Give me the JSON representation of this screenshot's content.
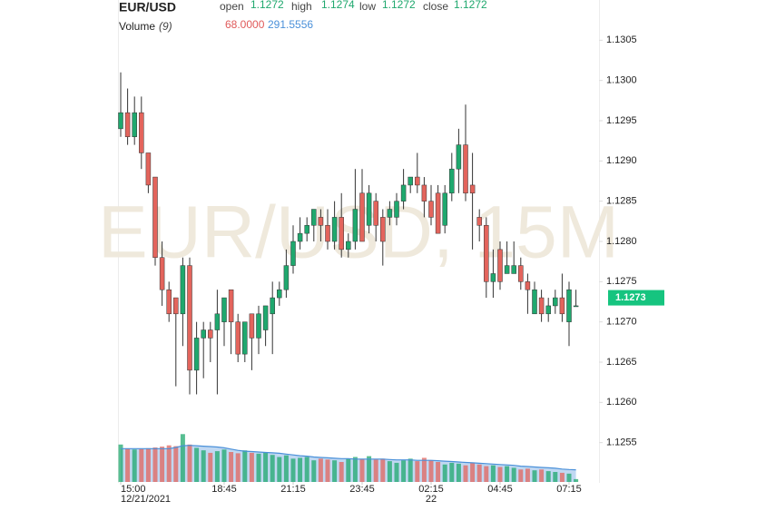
{
  "chart_data": {
    "type": "candlestick",
    "legend": {
      "symbol": "EUR/USD",
      "items": [
        {
          "label": "open",
          "value": "1.1272"
        },
        {
          "label": "high",
          "value": "1.1274"
        },
        {
          "label": "low",
          "value": "1.1272"
        },
        {
          "label": "close",
          "value": "1.1272"
        }
      ],
      "volume_label": "Volume",
      "volume_period": "(9)",
      "volume_value": "68.0000",
      "volume_ma_value": "291.5556"
    },
    "watermark": "EUR/USD, 15M",
    "categories": [
      "15:00",
      null,
      null,
      null,
      null,
      null,
      null,
      null,
      null,
      null,
      null,
      null,
      null,
      null,
      null,
      "18:45",
      null,
      null,
      null,
      null,
      null,
      null,
      null,
      null,
      null,
      "21:15",
      null,
      null,
      null,
      null,
      null,
      null,
      null,
      null,
      null,
      "23:45",
      null,
      null,
      null,
      null,
      null,
      null,
      null,
      null,
      null,
      "02:15",
      null,
      null,
      null,
      null,
      null,
      null,
      null,
      null,
      null,
      "04:45",
      null,
      null,
      null,
      null,
      null,
      null,
      null,
      null,
      null,
      "07:15",
      null
    ],
    "category_dates": [
      "12/21/2021",
      null,
      null,
      null,
      null,
      null,
      null,
      null,
      null,
      null,
      null,
      null,
      null,
      null,
      null,
      null,
      null,
      null,
      null,
      null,
      null,
      null,
      null,
      null,
      null,
      null,
      null,
      null,
      null,
      null,
      null,
      null,
      null,
      null,
      null,
      null,
      null,
      null,
      null,
      null,
      null,
      null,
      null,
      null,
      null,
      "22",
      null,
      null,
      null,
      null,
      null,
      null,
      null,
      null,
      null,
      null,
      null,
      null,
      null,
      null,
      null,
      null,
      null,
      null,
      null,
      null,
      null
    ],
    "open": [
      1.1294,
      1.1296,
      1.1293,
      1.1296,
      1.1291,
      1.1288,
      1.1278,
      1.1274,
      1.1273,
      1.1271,
      1.1277,
      1.1264,
      1.1268,
      1.1269,
      1.1269,
      1.127,
      1.1274,
      1.127,
      1.1266,
      1.1271,
      1.1268,
      1.1269,
      1.1271,
      1.1273,
      1.1274,
      1.1277,
      1.128,
      1.1281,
      1.1282,
      1.1283,
      1.1282,
      1.128,
      1.1283,
      1.1279,
      1.128,
      1.1286,
      1.1282,
      1.1285,
      1.1283,
      1.1283,
      1.1283,
      1.1285,
      1.1287,
      1.1288,
      1.1287,
      1.1285,
      1.1286,
      1.1282,
      1.1286,
      1.1289,
      1.1292,
      1.1287,
      1.1283,
      1.1282,
      1.1275,
      1.1279,
      1.1276,
      1.1276,
      1.1277,
      1.1275,
      1.1271,
      1.1273,
      1.1271,
      1.1272,
      1.1273,
      1.127,
      1.1272
    ],
    "high": [
      1.1301,
      1.1299,
      1.1298,
      1.1298,
      1.1291,
      1.1288,
      1.128,
      1.1275,
      1.1273,
      1.1278,
      1.1278,
      1.127,
      1.127,
      1.127,
      1.1274,
      1.1273,
      1.1274,
      1.1271,
      1.127,
      1.1271,
      1.1272,
      1.1272,
      1.1275,
      1.1275,
      1.1279,
      1.1282,
      1.1283,
      1.1283,
      1.1284,
      1.1284,
      1.1284,
      1.1285,
      1.1286,
      1.1281,
      1.1289,
      1.1289,
      1.1287,
      1.1286,
      1.1284,
      1.1285,
      1.1286,
      1.1289,
      1.1288,
      1.1291,
      1.1288,
      1.1287,
      1.1287,
      1.1287,
      1.1291,
      1.1294,
      1.1297,
      1.1291,
      1.1284,
      1.1283,
      1.1279,
      1.128,
      1.128,
      1.128,
      1.1278,
      1.1276,
      1.1275,
      1.1274,
      1.1273,
      1.1274,
      1.1276,
      1.1275,
      1.1274
    ],
    "low": [
      1.1293,
      1.1292,
      1.1292,
      1.1289,
      1.1286,
      1.1277,
      1.1272,
      1.127,
      1.1262,
      1.1267,
      1.1261,
      1.1261,
      1.1263,
      1.1265,
      1.1261,
      1.1267,
      1.1266,
      1.1265,
      1.1265,
      1.1264,
      1.1266,
      1.1267,
      1.1266,
      1.1272,
      1.1273,
      1.1276,
      1.1279,
      1.128,
      1.128,
      1.128,
      1.1279,
      1.1279,
      1.1278,
      1.1278,
      1.1279,
      1.128,
      1.1281,
      1.128,
      1.1277,
      1.1282,
      1.1282,
      1.1284,
      1.1286,
      1.1286,
      1.1283,
      1.1282,
      1.1281,
      1.1281,
      1.1285,
      1.1286,
      1.1285,
      1.1279,
      1.128,
      1.1273,
      1.1273,
      1.1274,
      1.1276,
      1.1276,
      1.1274,
      1.1271,
      1.1271,
      1.127,
      1.127,
      1.1271,
      1.127,
      1.1267,
      1.1272
    ],
    "close": [
      1.1296,
      1.1293,
      1.1296,
      1.1291,
      1.1287,
      1.1278,
      1.1274,
      1.1271,
      1.1271,
      1.1277,
      1.1264,
      1.1268,
      1.1269,
      1.1268,
      1.1271,
      1.1273,
      1.127,
      1.1266,
      1.127,
      1.1268,
      1.1271,
      1.1272,
      1.1273,
      1.1274,
      1.1277,
      1.128,
      1.1281,
      1.1282,
      1.1284,
      1.1282,
      1.128,
      1.1283,
      1.1279,
      1.128,
      1.1284,
      1.128,
      1.1286,
      1.1282,
      1.128,
      1.1284,
      1.1285,
      1.1287,
      1.1288,
      1.1287,
      1.1285,
      1.1283,
      1.1281,
      1.1286,
      1.1289,
      1.1292,
      1.1286,
      1.1286,
      1.1282,
      1.1275,
      1.1276,
      1.1275,
      1.1277,
      1.1277,
      1.1275,
      1.1274,
      1.1274,
      1.1271,
      1.1272,
      1.1273,
      1.1271,
      1.1274,
      1.1272
    ],
    "up_color": "#1fa86e",
    "down_color": "#e3645c",
    "ylim": [
      1.125,
      1.131
    ],
    "yticks": [
      1.1255,
      {
        "value": 1.126,
        "label": "1.1260"
      },
      1.1265,
      {
        "value": 1.127,
        "label": "1.1270"
      },
      1.1275,
      {
        "value": 1.128,
        "label": "1.1280"
      },
      1.1285,
      {
        "value": 1.129,
        "label": "1.1290"
      },
      1.1295,
      {
        "value": 1.13,
        "label": "1.1300"
      },
      1.1305
    ],
    "last_price": {
      "value": 1.1273,
      "label": "1.1273",
      "color": "#16c47f"
    },
    "volume": {
      "values": [
        900,
        800,
        780,
        790,
        810,
        830,
        850,
        880,
        860,
        1150,
        900,
        820,
        760,
        700,
        740,
        780,
        720,
        690,
        760,
        700,
        680,
        720,
        650,
        600,
        640,
        560,
        580,
        600,
        520,
        560,
        540,
        520,
        480,
        560,
        600,
        550,
        620,
        540,
        560,
        500,
        460,
        520,
        560,
        500,
        580,
        520,
        480,
        420,
        460,
        440,
        400,
        460,
        420,
        380,
        400,
        360,
        380,
        340,
        300,
        320,
        280,
        300,
        260,
        240,
        220,
        200,
        68
      ],
      "ma": [
        800,
        800,
        800,
        800,
        800,
        800,
        800,
        800,
        830,
        870,
        880,
        870,
        860,
        850,
        840,
        820,
        790,
        760,
        740,
        730,
        720,
        710,
        700,
        690,
        670,
        650,
        630,
        620,
        600,
        590,
        580,
        570,
        560,
        560,
        550,
        550,
        550,
        550,
        550,
        540,
        530,
        530,
        530,
        520,
        520,
        520,
        510,
        500,
        490,
        480,
        470,
        460,
        450,
        440,
        430,
        420,
        410,
        400,
        380,
        370,
        360,
        350,
        340,
        330,
        310,
        300,
        291.5556
      ],
      "ylim": [
        0,
        1200
      ],
      "ma_color": "#4a90d9"
    }
  }
}
